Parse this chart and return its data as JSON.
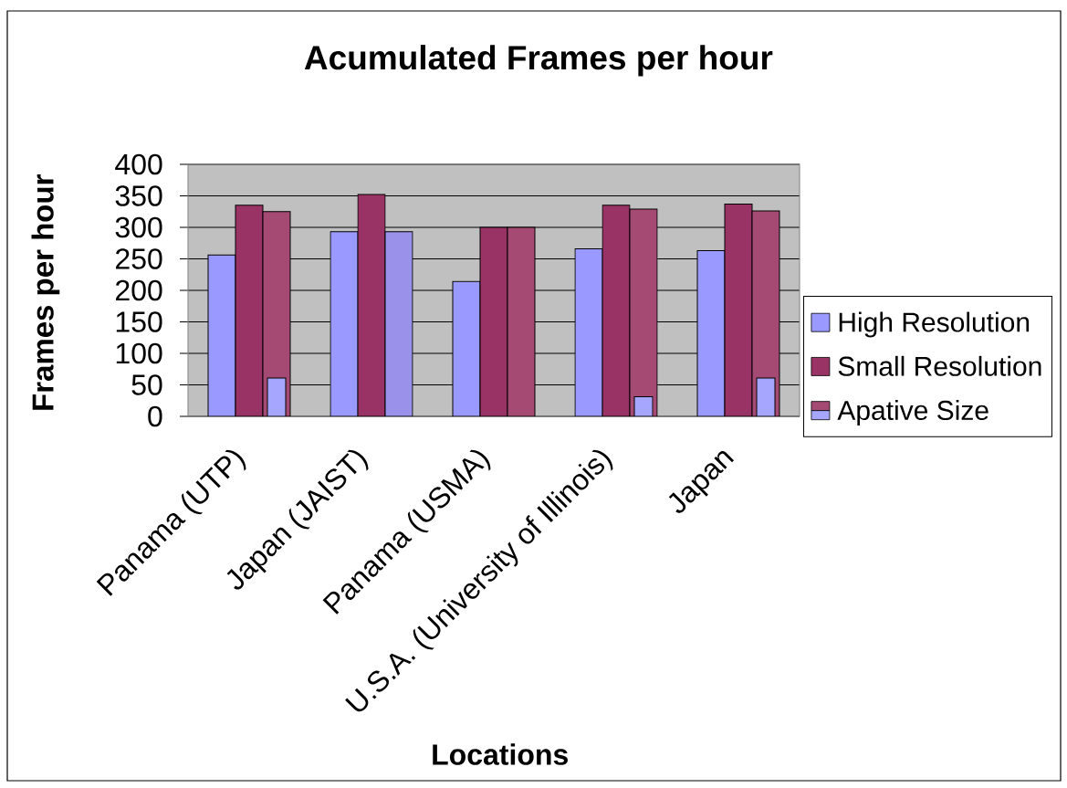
{
  "chart_data": {
    "type": "bar",
    "title": "Acumulated Frames per hour",
    "xlabel": "Locations",
    "ylabel": "Frames per hour",
    "categories": [
      "Panama (UTP)",
      "Japan (JAIST)",
      "Panama (USMA)",
      "U.S.A. (University of Illinois)",
      "Japan"
    ],
    "series": [
      {
        "name": "High Resolution",
        "color": "#9999ff",
        "values": [
          256,
          293,
          214,
          266,
          263
        ]
      },
      {
        "name": "Small Resolution",
        "color": "#993366",
        "values": [
          335,
          352,
          300,
          335,
          337
        ]
      },
      {
        "name": "Apative Size",
        "color": "#a44a73",
        "colors": [
          "#a44a73",
          "#9a92ea",
          "#a44a73",
          "#a44a73",
          "#a44a73"
        ],
        "values": [
          325,
          293,
          300,
          329,
          326
        ]
      },
      {
        "color": "#a6a6ff",
        "base": [
          0,
          null,
          null,
          0,
          0
        ],
        "values": [
          61,
          null,
          null,
          31,
          61
        ]
      }
    ],
    "ylim": [
      0,
      400
    ],
    "yticks": [
      0,
      50,
      100,
      150,
      200,
      250,
      300,
      350,
      400
    ],
    "grid": "y",
    "legend": "right"
  }
}
